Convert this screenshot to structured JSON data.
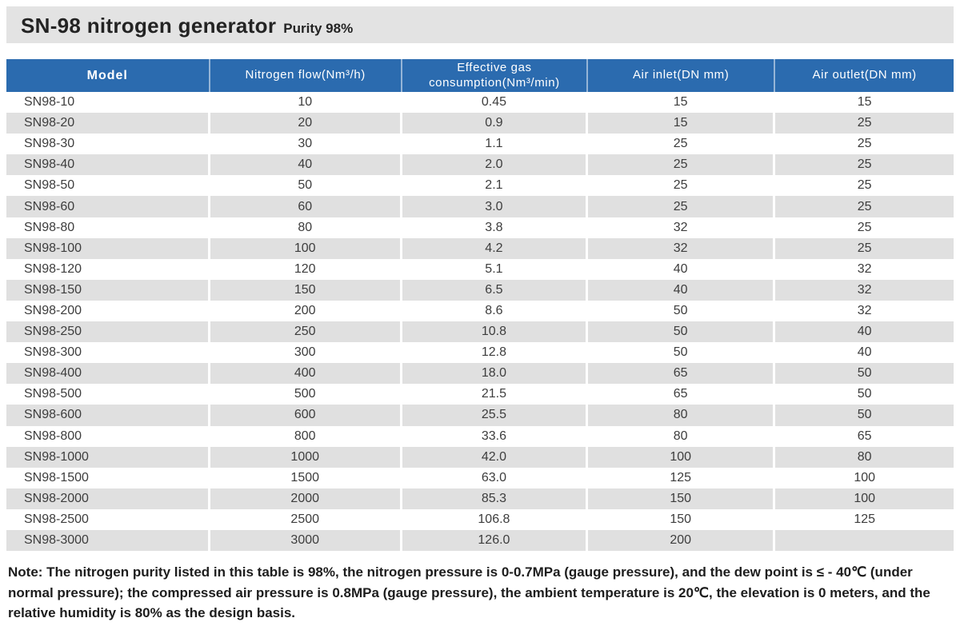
{
  "header": {
    "title": "SN-98 nitrogen generator",
    "subtitle": "Purity 98%"
  },
  "table": {
    "columns": [
      "Model",
      "Nitrogen flow(Nm³/h)",
      "Effective gas\nconsumption(Nm³/min)",
      "Air inlet(DN mm)",
      "Air outlet(DN mm)"
    ],
    "rows": [
      [
        "SN98-10",
        "10",
        "0.45",
        "15",
        "15"
      ],
      [
        "SN98-20",
        "20",
        "0.9",
        "15",
        "25"
      ],
      [
        "SN98-30",
        "30",
        "1.1",
        "25",
        "25"
      ],
      [
        "SN98-40",
        "40",
        "2.0",
        "25",
        "25"
      ],
      [
        "SN98-50",
        "50",
        "2.1",
        "25",
        "25"
      ],
      [
        "SN98-60",
        "60",
        "3.0",
        "25",
        "25"
      ],
      [
        "SN98-80",
        "80",
        "3.8",
        "32",
        "25"
      ],
      [
        "SN98-100",
        "100",
        "4.2",
        "32",
        "25"
      ],
      [
        "SN98-120",
        "120",
        "5.1",
        "40",
        "32"
      ],
      [
        "SN98-150",
        "150",
        "6.5",
        "40",
        "32"
      ],
      [
        "SN98-200",
        "200",
        "8.6",
        "50",
        "32"
      ],
      [
        "SN98-250",
        "250",
        "10.8",
        "50",
        "40"
      ],
      [
        "SN98-300",
        "300",
        "12.8",
        "50",
        "40"
      ],
      [
        "SN98-400",
        "400",
        "18.0",
        "65",
        "50"
      ],
      [
        "SN98-500",
        "500",
        "21.5",
        "65",
        "50"
      ],
      [
        "SN98-600",
        "600",
        "25.5",
        "80",
        "50"
      ],
      [
        "SN98-800",
        "800",
        "33.6",
        "80",
        "65"
      ],
      [
        "SN98-1000",
        "1000",
        "42.0",
        "100",
        "80"
      ],
      [
        "SN98-1500",
        "1500",
        "63.0",
        "125",
        "100"
      ],
      [
        "SN98-2000",
        "2000",
        "85.3",
        "150",
        "100"
      ],
      [
        "SN98-2500",
        "2500",
        "106.8",
        "150",
        "125"
      ],
      [
        "SN98-3000",
        "3000",
        "126.0",
        "200",
        ""
      ]
    ]
  },
  "note": "Note: The nitrogen purity listed in this table is 98%, the nitrogen pressure is 0-0.7MPa (gauge pressure), and the dew point is ≤ - 40℃ (under normal pressure); the compressed air pressure is 0.8MPa (gauge pressure), the ambient temperature is 20℃, the elevation is 0 meters, and the relative humidity is 80% as the design basis.",
  "colors": {
    "header_bg": "#2b6baf",
    "row_alt_bg": "#e0e0e0",
    "banner_bg": "#e3e3e3"
  }
}
